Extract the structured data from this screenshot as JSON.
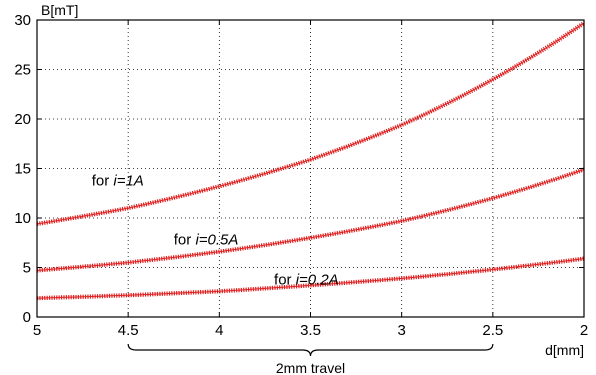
{
  "chart_data": {
    "type": "line",
    "xlabel": "d[mm]",
    "ylabel": "B[mT]",
    "xlim": [
      5,
      2
    ],
    "ylim": [
      0,
      30
    ],
    "x_reversed": true,
    "grid": true,
    "x_ticks": [
      "5",
      "4.5",
      "4",
      "3.5",
      "3",
      "2.5",
      "2"
    ],
    "x_tick_values": [
      5,
      4.5,
      4,
      3.5,
      3,
      2.5,
      2
    ],
    "y_ticks": [
      "0",
      "5",
      "10",
      "15",
      "20",
      "25",
      "30"
    ],
    "y_tick_values": [
      0,
      5,
      10,
      15,
      20,
      25,
      30
    ],
    "line_color": "#e02020",
    "series": [
      {
        "x": [
          5,
          4.5,
          4,
          3.5,
          3,
          2.5,
          2
        ],
        "values": [
          9.4,
          11.0,
          13.2,
          15.9,
          19.4,
          24.0,
          29.7
        ]
      },
      {
        "x": [
          5,
          4.5,
          4,
          3.5,
          3,
          2.5,
          2
        ],
        "values": [
          4.7,
          5.5,
          6.6,
          8.0,
          9.7,
          12.0,
          14.9
        ]
      },
      {
        "x": [
          5,
          4.5,
          4,
          3.5,
          3,
          2.5,
          2
        ],
        "values": [
          1.9,
          2.2,
          2.6,
          3.2,
          3.9,
          4.8,
          5.9
        ]
      }
    ],
    "annotations": [
      {
        "prefix": "for ",
        "italic": "i=1A",
        "x": 4.7,
        "y": 13.3
      },
      {
        "prefix": "for ",
        "italic": "i=0.5A",
        "x": 4.25,
        "y": 7.3
      },
      {
        "prefix": "for ",
        "italic": "i=0.2A",
        "x": 3.7,
        "y": 3.3
      }
    ],
    "range_annotation": {
      "label": "2mm travel",
      "from": 4.5,
      "to": 2.5
    }
  }
}
